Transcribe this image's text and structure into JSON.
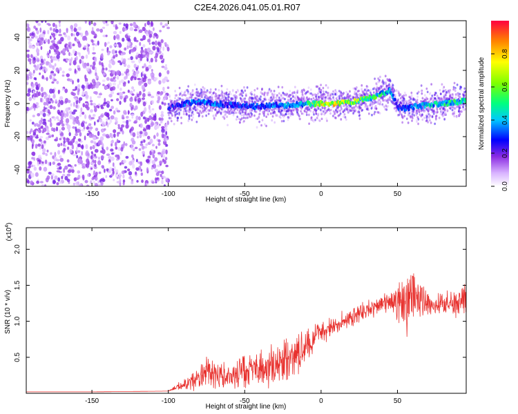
{
  "title": "C2E4.2026.041.05.01.R07",
  "colors": {
    "snr_line": "#e8322f",
    "scatter_purple": "#7a1fe0",
    "axis": "#000000"
  },
  "chart_data": [
    {
      "type": "heatmap",
      "name": "spectrogram",
      "xlabel": "Height of straight line (km)",
      "ylabel": "Frequency (Hz)",
      "xlim": [
        -193,
        95
      ],
      "ylim": [
        -50,
        50
      ],
      "x_ticks": [
        -150,
        -100,
        -50,
        0,
        50
      ],
      "x_tick_labels": [
        "-150",
        "-100",
        "-50",
        "0",
        "50"
      ],
      "y_ticks": [
        -40,
        -20,
        0,
        20,
        40
      ],
      "y_tick_labels": [
        "-40",
        "-20",
        "0",
        "20",
        "40"
      ],
      "noise_region_x": [
        -193,
        -100
      ],
      "ridge": {
        "x": [
          -100,
          -90,
          -80,
          -70,
          -60,
          -50,
          -40,
          -30,
          -20,
          -10,
          0,
          10,
          20,
          25,
          30,
          35,
          40,
          45,
          48,
          50,
          55,
          60,
          70,
          80,
          90,
          95
        ],
        "freq": [
          -3,
          0,
          1,
          0,
          -1,
          -1,
          -2,
          -1,
          -1,
          0,
          0,
          0,
          1,
          2,
          3,
          4,
          6,
          8,
          3,
          -2,
          -3,
          -2,
          -1,
          0,
          1,
          2
        ],
        "amplitude": [
          0.3,
          0.35,
          0.4,
          0.4,
          0.35,
          0.35,
          0.35,
          0.4,
          0.45,
          0.55,
          0.85,
          0.9,
          0.75,
          0.7,
          0.65,
          0.6,
          0.55,
          0.45,
          0.4,
          0.35,
          0.35,
          0.4,
          0.5,
          0.55,
          0.6,
          0.55
        ]
      },
      "colorbar": {
        "label": "Normalized spectral amplitude",
        "range": [
          0.0,
          1.0
        ],
        "ticks": [
          0.0,
          0.2,
          0.4,
          0.6,
          0.8
        ],
        "tick_labels": [
          "0.0",
          "0.2",
          "0.4",
          "0.6",
          "0.8"
        ]
      }
    },
    {
      "type": "line",
      "name": "snr",
      "xlabel": "Height of straight line (km)",
      "ylabel": "SNR (10 * v/v)",
      "y_multiplier": "(x10",
      "y_multiplier_exp": "4",
      "y_multiplier_close": ")",
      "xlim": [
        -193,
        95
      ],
      "ylim": [
        0.0,
        2.3
      ],
      "x_ticks": [
        -150,
        -100,
        -50,
        0,
        50
      ],
      "x_tick_labels": [
        "-150",
        "-100",
        "-50",
        "0",
        "50"
      ],
      "y_ticks": [
        0.5,
        1.0,
        1.5,
        2.0
      ],
      "y_tick_labels": [
        "0.5",
        "1.0",
        "1.5",
        "2.0"
      ],
      "series": [
        {
          "name": "SNR",
          "x": [
            -193,
            -150,
            -100,
            -95,
            -90,
            -80,
            -75,
            -70,
            -60,
            -50,
            -45,
            -40,
            -30,
            -20,
            -15,
            -10,
            0,
            10,
            20,
            30,
            40,
            45,
            50,
            55,
            58,
            60,
            65,
            70,
            80,
            90,
            95
          ],
          "base": [
            0.02,
            0.02,
            0.03,
            0.08,
            0.12,
            0.2,
            0.3,
            0.25,
            0.22,
            0.3,
            0.33,
            0.35,
            0.38,
            0.45,
            0.55,
            0.65,
            0.85,
            0.95,
            1.05,
            1.15,
            1.22,
            1.25,
            1.27,
            1.28,
            1.25,
            1.3,
            1.3,
            1.25,
            1.25,
            1.25,
            1.35
          ],
          "amp": [
            0.0,
            0.0,
            0.0,
            0.05,
            0.1,
            0.2,
            0.25,
            0.25,
            0.2,
            0.3,
            0.3,
            0.3,
            0.35,
            0.4,
            0.4,
            0.3,
            0.2,
            0.18,
            0.16,
            0.16,
            0.16,
            0.2,
            0.35,
            0.55,
            0.6,
            0.45,
            0.3,
            0.22,
            0.2,
            0.22,
            0.4
          ]
        }
      ]
    }
  ]
}
